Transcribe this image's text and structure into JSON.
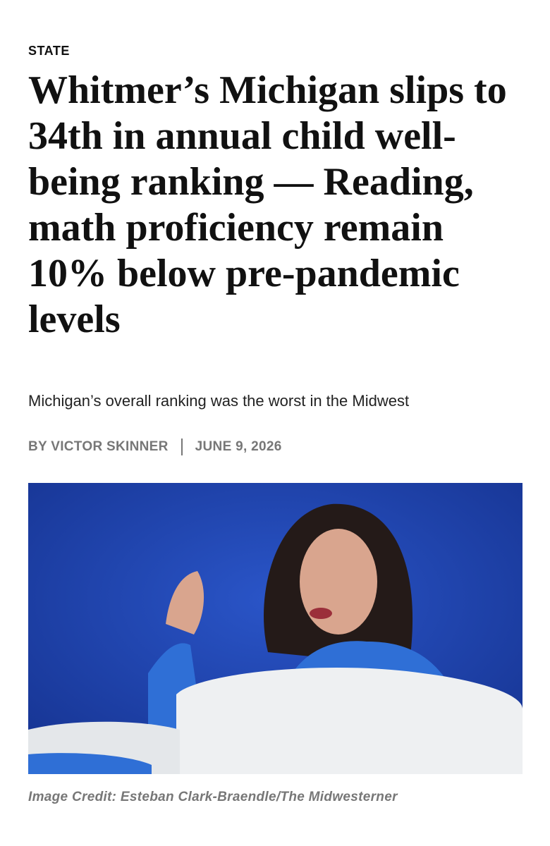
{
  "section": "STATE",
  "headline": "Whitmer’s Michigan slips to 34th in annual child well-being ranking — Reading, math proficiency remain 10% below pre-pandemic levels",
  "subheadline": "Michigan’s overall ranking was the worst in the Midwest",
  "byline": {
    "author": "BY VICTOR SKINNER",
    "date": "JUNE 9, 2026"
  },
  "image": {
    "credit": "Image Credit: Esteban Clark-Braendle/The Midwesterner"
  }
}
